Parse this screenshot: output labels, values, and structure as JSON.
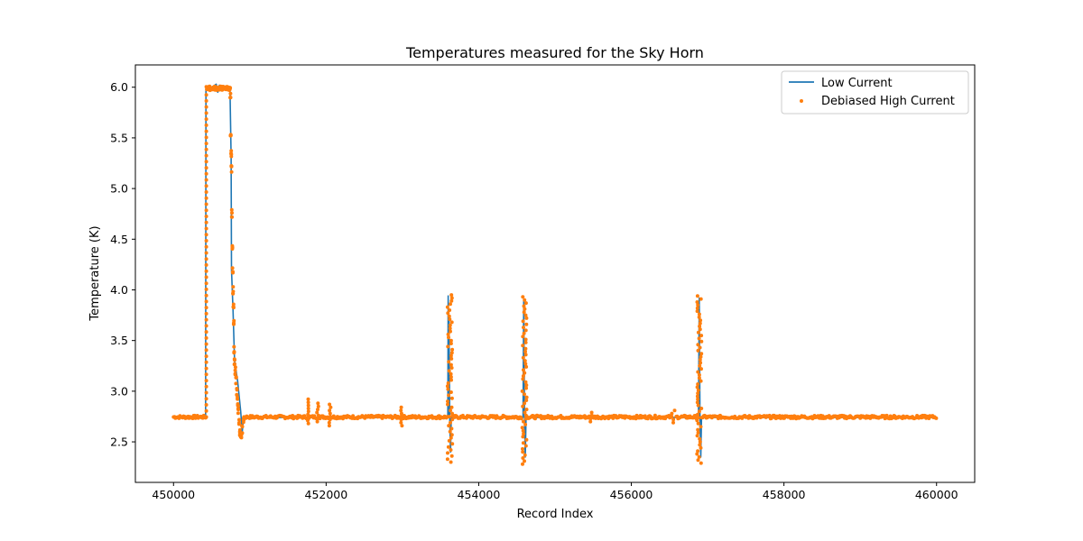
{
  "chart_data": {
    "type": "line",
    "title": "Temperatures measured for the Sky Horn",
    "xlabel": "Record Index",
    "ylabel": "Temperature (K)",
    "xlim": [
      449500,
      460500
    ],
    "ylim": [
      2.1,
      6.22
    ],
    "x_ticks": [
      450000,
      452000,
      454000,
      456000,
      458000,
      460000
    ],
    "x_tick_labels": [
      "450000",
      "452000",
      "454000",
      "456000",
      "458000",
      "460000"
    ],
    "y_ticks": [
      2.5,
      3.0,
      3.5,
      4.0,
      4.5,
      5.0,
      5.5,
      6.0
    ],
    "y_tick_labels": [
      "2.5",
      "3.0",
      "3.5",
      "4.0",
      "4.5",
      "5.0",
      "5.5",
      "6.0"
    ],
    "grid": false,
    "legend_position": "top-right",
    "colors": {
      "low_current": "#1f77b4",
      "debiased_high_current": "#ff7f0e"
    },
    "series": [
      {
        "name": "Low Current",
        "kind": "line",
        "x": [
          450000,
          450420,
          450425,
          450430,
          450500,
          450560,
          450580,
          450600,
          450680,
          450740,
          450755,
          450760,
          450780,
          450800,
          450840,
          450880,
          450900,
          450920,
          451000,
          451760,
          451765,
          451770,
          453595,
          453600,
          453605,
          453610,
          453620,
          453630,
          453640,
          454580,
          454590,
          454600,
          454610,
          454620,
          456880,
          456890,
          456900,
          456910,
          456920,
          460000
        ],
        "y": [
          2.74,
          2.74,
          5.98,
          6.0,
          6.0,
          6.03,
          5.95,
          6.02,
          6.0,
          6.0,
          5.3,
          4.2,
          3.8,
          3.3,
          3.1,
          2.8,
          2.6,
          2.74,
          2.74,
          2.74,
          2.86,
          2.74,
          2.74,
          3.94,
          2.74,
          3.7,
          2.74,
          2.4,
          2.74,
          2.74,
          3.9,
          2.74,
          2.35,
          2.74,
          2.74,
          3.92,
          2.74,
          2.35,
          2.74,
          2.74
        ]
      },
      {
        "name": "Debiased High Current",
        "kind": "scatter",
        "baseline": 2.745,
        "x_range": [
          450000,
          460000
        ],
        "step": 12,
        "events": [
          {
            "x0": 450430,
            "x1": 450740,
            "y": 5.99
          },
          {
            "x0": 451750,
            "x1": 451770,
            "ymin": 2.68,
            "ymax": 2.92
          },
          {
            "x0": 451880,
            "x1": 451900,
            "ymin": 2.7,
            "ymax": 2.88
          },
          {
            "x0": 452040,
            "x1": 452060,
            "ymin": 2.66,
            "ymax": 2.87
          },
          {
            "x0": 452980,
            "x1": 452995,
            "ymin": 2.66,
            "ymax": 2.85
          },
          {
            "x0": 453590,
            "x1": 453655,
            "ymin": 2.3,
            "ymax": 3.96
          },
          {
            "x0": 454570,
            "x1": 454630,
            "ymin": 2.28,
            "ymax": 3.93
          },
          {
            "x0": 456860,
            "x1": 456920,
            "ymin": 2.29,
            "ymax": 3.95
          },
          {
            "x0": 455460,
            "x1": 455490,
            "ymin": 2.7,
            "ymax": 2.8
          },
          {
            "x0": 456520,
            "x1": 456580,
            "ymin": 2.69,
            "ymax": 2.82
          }
        ],
        "falloff": [
          [
            450740,
            5.98
          ],
          [
            450745,
            5.9
          ],
          [
            450750,
            5.5
          ],
          [
            450755,
            5.35
          ],
          [
            450760,
            5.2
          ],
          [
            450765,
            4.75
          ],
          [
            450770,
            4.4
          ],
          [
            450775,
            4.2
          ],
          [
            450780,
            4.0
          ],
          [
            450785,
            3.85
          ],
          [
            450790,
            3.7
          ],
          [
            450795,
            3.4
          ],
          [
            450800,
            3.3
          ],
          [
            450810,
            3.2
          ],
          [
            450820,
            3.1
          ],
          [
            450830,
            3.0
          ],
          [
            450840,
            2.9
          ],
          [
            450850,
            2.82
          ],
          [
            450860,
            2.7
          ],
          [
            450870,
            2.6
          ],
          [
            450880,
            2.56
          ],
          [
            450890,
            2.58
          ],
          [
            450900,
            2.62
          ],
          [
            450920,
            2.7
          ]
        ]
      }
    ]
  }
}
